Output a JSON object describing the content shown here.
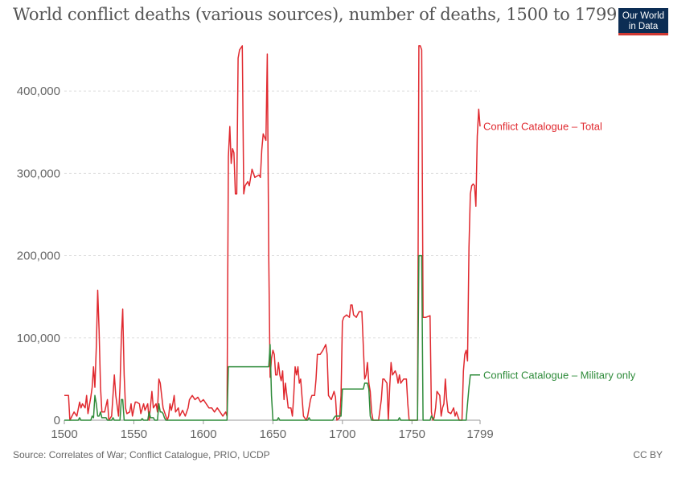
{
  "title": "World conflict deaths (various sources), number of deaths, 1500 to 1799",
  "logo": {
    "line1": "Our World",
    "line2": "in Data"
  },
  "footer": {
    "source": "Source: Correlates of War; Conflict Catalogue, PRIO, UCDP",
    "license": "CC BY"
  },
  "chart_data": {
    "type": "line",
    "xlim": [
      1500,
      1799
    ],
    "ylim": [
      0,
      450000
    ],
    "grid": "horizontal dashed",
    "legend_placement": "inline-right",
    "x_ticks": [
      {
        "value": 1500,
        "label": "1500"
      },
      {
        "value": 1550,
        "label": "1550"
      },
      {
        "value": 1600,
        "label": "1600"
      },
      {
        "value": 1650,
        "label": "1650"
      },
      {
        "value": 1700,
        "label": "1700"
      },
      {
        "value": 1750,
        "label": "1750"
      },
      {
        "value": 1799,
        "label": "1799"
      }
    ],
    "y_ticks": [
      {
        "value": 0,
        "label": "0"
      },
      {
        "value": 100000,
        "label": "100,000"
      },
      {
        "value": 200000,
        "label": "200,000"
      },
      {
        "value": 300000,
        "label": "300,000"
      },
      {
        "value": 400000,
        "label": "400,000"
      }
    ],
    "series": [
      {
        "name": "Conflict Catalogue – Total",
        "color": "#e0292f",
        "points": [
          [
            1500,
            30000
          ],
          [
            1503,
            30000
          ],
          [
            1504,
            0
          ],
          [
            1507,
            10000
          ],
          [
            1509,
            5000
          ],
          [
            1511,
            22000
          ],
          [
            1512,
            15000
          ],
          [
            1513,
            20000
          ],
          [
            1515,
            15000
          ],
          [
            1516,
            30000
          ],
          [
            1517,
            8000
          ],
          [
            1519,
            28000
          ],
          [
            1520,
            40000
          ],
          [
            1521,
            65000
          ],
          [
            1522,
            40000
          ],
          [
            1523,
            90000
          ],
          [
            1524,
            158000
          ],
          [
            1525,
            110000
          ],
          [
            1526,
            40000
          ],
          [
            1527,
            10000
          ],
          [
            1529,
            10000
          ],
          [
            1531,
            25000
          ],
          [
            1532,
            0
          ],
          [
            1534,
            5000
          ],
          [
            1536,
            55000
          ],
          [
            1537,
            30000
          ],
          [
            1539,
            5000
          ],
          [
            1540,
            40000
          ],
          [
            1541,
            100000
          ],
          [
            1542,
            135000
          ],
          [
            1543,
            55000
          ],
          [
            1544,
            15000
          ],
          [
            1545,
            8000
          ],
          [
            1547,
            10000
          ],
          [
            1548,
            20000
          ],
          [
            1549,
            5000
          ],
          [
            1551,
            22000
          ],
          [
            1552,
            22000
          ],
          [
            1554,
            20000
          ],
          [
            1555,
            8000
          ],
          [
            1557,
            20000
          ],
          [
            1558,
            12000
          ],
          [
            1560,
            20000
          ],
          [
            1561,
            0
          ],
          [
            1563,
            35000
          ],
          [
            1564,
            15000
          ],
          [
            1566,
            20000
          ],
          [
            1567,
            10000
          ],
          [
            1568,
            50000
          ],
          [
            1569,
            45000
          ],
          [
            1570,
            30000
          ],
          [
            1571,
            15000
          ],
          [
            1572,
            10000
          ],
          [
            1574,
            0
          ],
          [
            1575,
            5000
          ],
          [
            1576,
            20000
          ],
          [
            1577,
            12000
          ],
          [
            1578,
            20000
          ],
          [
            1579,
            30000
          ],
          [
            1580,
            10000
          ],
          [
            1582,
            15000
          ],
          [
            1583,
            5000
          ],
          [
            1585,
            12000
          ],
          [
            1587,
            5000
          ],
          [
            1589,
            15000
          ],
          [
            1590,
            25000
          ],
          [
            1592,
            30000
          ],
          [
            1594,
            25000
          ],
          [
            1596,
            28000
          ],
          [
            1598,
            22000
          ],
          [
            1600,
            25000
          ],
          [
            1602,
            20000
          ],
          [
            1604,
            15000
          ],
          [
            1606,
            15000
          ],
          [
            1608,
            10000
          ],
          [
            1610,
            15000
          ],
          [
            1612,
            10000
          ],
          [
            1614,
            5000
          ],
          [
            1616,
            10000
          ],
          [
            1617,
            5000
          ],
          [
            1618,
            320000
          ],
          [
            1619,
            357000
          ],
          [
            1620,
            312000
          ],
          [
            1621,
            330000
          ],
          [
            1622,
            325000
          ],
          [
            1623,
            275000
          ],
          [
            1624,
            275000
          ],
          [
            1625,
            440000
          ],
          [
            1626,
            450000
          ],
          [
            1628,
            455000
          ],
          [
            1629,
            275000
          ],
          [
            1630,
            285000
          ],
          [
            1632,
            290000
          ],
          [
            1633,
            285000
          ],
          [
            1635,
            305000
          ],
          [
            1637,
            295000
          ],
          [
            1640,
            298000
          ],
          [
            1641,
            295000
          ],
          [
            1642,
            328000
          ],
          [
            1643,
            348000
          ],
          [
            1645,
            340000
          ],
          [
            1646,
            445000
          ],
          [
            1647,
            200000
          ],
          [
            1648,
            52000
          ],
          [
            1649,
            75000
          ],
          [
            1650,
            85000
          ],
          [
            1651,
            80000
          ],
          [
            1652,
            55000
          ],
          [
            1653,
            55000
          ],
          [
            1654,
            70000
          ],
          [
            1655,
            55000
          ],
          [
            1656,
            48000
          ],
          [
            1657,
            60000
          ],
          [
            1658,
            25000
          ],
          [
            1659,
            45000
          ],
          [
            1660,
            30000
          ],
          [
            1661,
            15000
          ],
          [
            1663,
            15000
          ],
          [
            1664,
            5000
          ],
          [
            1665,
            30000
          ],
          [
            1666,
            65000
          ],
          [
            1667,
            55000
          ],
          [
            1668,
            65000
          ],
          [
            1669,
            45000
          ],
          [
            1670,
            50000
          ],
          [
            1672,
            5000
          ],
          [
            1674,
            0
          ],
          [
            1675,
            5000
          ],
          [
            1677,
            25000
          ],
          [
            1678,
            30000
          ],
          [
            1680,
            30000
          ],
          [
            1681,
            50000
          ],
          [
            1682,
            80000
          ],
          [
            1684,
            80000
          ],
          [
            1686,
            85000
          ],
          [
            1688,
            92000
          ],
          [
            1689,
            80000
          ],
          [
            1690,
            30000
          ],
          [
            1692,
            25000
          ],
          [
            1694,
            35000
          ],
          [
            1695,
            28000
          ],
          [
            1696,
            0
          ],
          [
            1698,
            3000
          ],
          [
            1699,
            30000
          ],
          [
            1700,
            120000
          ],
          [
            1701,
            125000
          ],
          [
            1703,
            128000
          ],
          [
            1705,
            125000
          ],
          [
            1706,
            140000
          ],
          [
            1707,
            140000
          ],
          [
            1708,
            128000
          ],
          [
            1710,
            125000
          ],
          [
            1712,
            132000
          ],
          [
            1714,
            132000
          ],
          [
            1715,
            90000
          ],
          [
            1716,
            50000
          ],
          [
            1717,
            55000
          ],
          [
            1718,
            70000
          ],
          [
            1719,
            45000
          ],
          [
            1720,
            35000
          ],
          [
            1721,
            10000
          ],
          [
            1722,
            0
          ],
          [
            1726,
            0
          ],
          [
            1728,
            25000
          ],
          [
            1729,
            50000
          ],
          [
            1730,
            50000
          ],
          [
            1732,
            45000
          ],
          [
            1733,
            0
          ],
          [
            1734,
            40000
          ],
          [
            1735,
            70000
          ],
          [
            1736,
            55000
          ],
          [
            1738,
            60000
          ],
          [
            1739,
            55000
          ],
          [
            1740,
            45000
          ],
          [
            1741,
            55000
          ],
          [
            1742,
            45000
          ],
          [
            1744,
            50000
          ],
          [
            1746,
            50000
          ],
          [
            1747,
            20000
          ],
          [
            1748,
            0
          ],
          [
            1754,
            0
          ],
          [
            1755,
            455000
          ],
          [
            1756,
            455000
          ],
          [
            1757,
            450000
          ],
          [
            1758,
            125000
          ],
          [
            1760,
            125000
          ],
          [
            1763,
            127000
          ],
          [
            1764,
            10000
          ],
          [
            1765,
            0
          ],
          [
            1766,
            3000
          ],
          [
            1767,
            15000
          ],
          [
            1768,
            35000
          ],
          [
            1770,
            30000
          ],
          [
            1771,
            5000
          ],
          [
            1772,
            15000
          ],
          [
            1773,
            20000
          ],
          [
            1774,
            50000
          ],
          [
            1775,
            25000
          ],
          [
            1776,
            10000
          ],
          [
            1778,
            8000
          ],
          [
            1780,
            15000
          ],
          [
            1781,
            5000
          ],
          [
            1782,
            10000
          ],
          [
            1783,
            5000
          ],
          [
            1784,
            0
          ],
          [
            1786,
            0
          ],
          [
            1787,
            60000
          ],
          [
            1788,
            80000
          ],
          [
            1789,
            85000
          ],
          [
            1790,
            72000
          ],
          [
            1791,
            210000
          ],
          [
            1792,
            275000
          ],
          [
            1793,
            285000
          ],
          [
            1794,
            287000
          ],
          [
            1795,
            285000
          ],
          [
            1796,
            260000
          ],
          [
            1797,
            345000
          ],
          [
            1798,
            378000
          ],
          [
            1799,
            357000
          ]
        ]
      },
      {
        "name": "Conflict Catalogue – Military only",
        "color": "#2e8b3a",
        "points": [
          [
            1500,
            0
          ],
          [
            1510,
            0
          ],
          [
            1511,
            3000
          ],
          [
            1512,
            0
          ],
          [
            1519,
            0
          ],
          [
            1520,
            5000
          ],
          [
            1521,
            3000
          ],
          [
            1522,
            30000
          ],
          [
            1523,
            20000
          ],
          [
            1524,
            5000
          ],
          [
            1525,
            5000
          ],
          [
            1526,
            10000
          ],
          [
            1527,
            3000
          ],
          [
            1530,
            3000
          ],
          [
            1531,
            0
          ],
          [
            1534,
            0
          ],
          [
            1535,
            3000
          ],
          [
            1536,
            0
          ],
          [
            1540,
            0
          ],
          [
            1541,
            25000
          ],
          [
            1542,
            25000
          ],
          [
            1543,
            0
          ],
          [
            1555,
            0
          ],
          [
            1556,
            2000
          ],
          [
            1557,
            0
          ],
          [
            1560,
            0
          ],
          [
            1561,
            10000
          ],
          [
            1562,
            3000
          ],
          [
            1564,
            3000
          ],
          [
            1565,
            0
          ],
          [
            1567,
            0
          ],
          [
            1568,
            20000
          ],
          [
            1569,
            10000
          ],
          [
            1570,
            10000
          ],
          [
            1571,
            8000
          ],
          [
            1572,
            3000
          ],
          [
            1573,
            0
          ],
          [
            1617,
            0
          ],
          [
            1618,
            65000
          ],
          [
            1647,
            65000
          ],
          [
            1648,
            92000
          ],
          [
            1649,
            30000
          ],
          [
            1650,
            0
          ],
          [
            1653,
            0
          ],
          [
            1654,
            3000
          ],
          [
            1655,
            0
          ],
          [
            1675,
            0
          ],
          [
            1676,
            3000
          ],
          [
            1677,
            0
          ],
          [
            1693,
            0
          ],
          [
            1694,
            3000
          ],
          [
            1695,
            5000
          ],
          [
            1699,
            5000
          ],
          [
            1700,
            38000
          ],
          [
            1715,
            38000
          ],
          [
            1716,
            45000
          ],
          [
            1718,
            45000
          ],
          [
            1719,
            38000
          ],
          [
            1720,
            5000
          ],
          [
            1721,
            0
          ],
          [
            1740,
            0
          ],
          [
            1741,
            3000
          ],
          [
            1742,
            0
          ],
          [
            1754,
            0
          ],
          [
            1755,
            200000
          ],
          [
            1757,
            200000
          ],
          [
            1758,
            0
          ],
          [
            1763,
            0
          ],
          [
            1764,
            5000
          ],
          [
            1765,
            3000
          ],
          [
            1766,
            0
          ],
          [
            1789,
            0
          ],
          [
            1790,
            20000
          ],
          [
            1791,
            40000
          ],
          [
            1792,
            55000
          ],
          [
            1799,
            55000
          ]
        ]
      }
    ]
  }
}
